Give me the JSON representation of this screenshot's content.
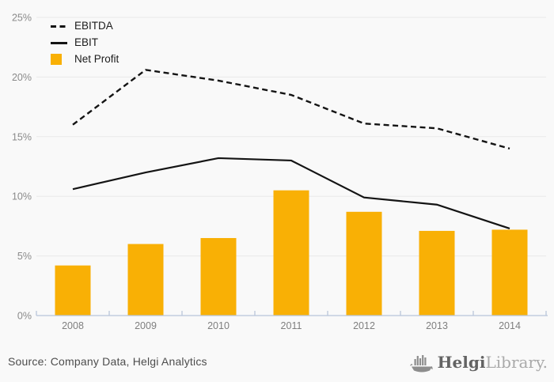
{
  "page": {
    "background_color": "#f9f9f9"
  },
  "chart_data": {
    "type": "bar",
    "subtype": "combo-bar-line",
    "title": "",
    "xlabel": "",
    "ylabel": "",
    "categories": [
      "2008",
      "2009",
      "2010",
      "2011",
      "2012",
      "2013",
      "2014"
    ],
    "series": [
      {
        "name": "EBITDA",
        "type": "line",
        "style": "dashed",
        "color": "#141414",
        "values": [
          16.0,
          20.6,
          19.7,
          18.5,
          16.1,
          15.7,
          14.0
        ]
      },
      {
        "name": "EBIT",
        "type": "line",
        "style": "solid",
        "color": "#141414",
        "values": [
          10.6,
          12.0,
          13.2,
          13.0,
          9.9,
          9.3,
          7.3
        ]
      },
      {
        "name": "Net Profit",
        "type": "bar",
        "color": "#F9B005",
        "values": [
          4.2,
          6.0,
          6.5,
          10.5,
          8.7,
          7.1,
          7.2
        ]
      }
    ],
    "ylim": [
      0,
      25
    ],
    "y_ticks": [
      {
        "value": 0,
        "label": "0%"
      },
      {
        "value": 5,
        "label": "5%"
      },
      {
        "value": 10,
        "label": "10%"
      },
      {
        "value": 15,
        "label": "15%"
      },
      {
        "value": 20,
        "label": "20%"
      },
      {
        "value": 25,
        "label": "25%"
      }
    ],
    "grid": "horizontal",
    "legend_position": "top-left",
    "colors": {
      "grid_color": "#e9e9e9",
      "axis_color": "#b9c5da",
      "tick_label_color": "#8a8a8a",
      "x_label_color": "#7f7f7f",
      "bar_color": "#F9B005",
      "line_color": "#141414"
    }
  },
  "footer": {
    "source": "Source: Company Data, Helgi Analytics",
    "logo_primary": "Helgi",
    "logo_secondary": "Library."
  }
}
